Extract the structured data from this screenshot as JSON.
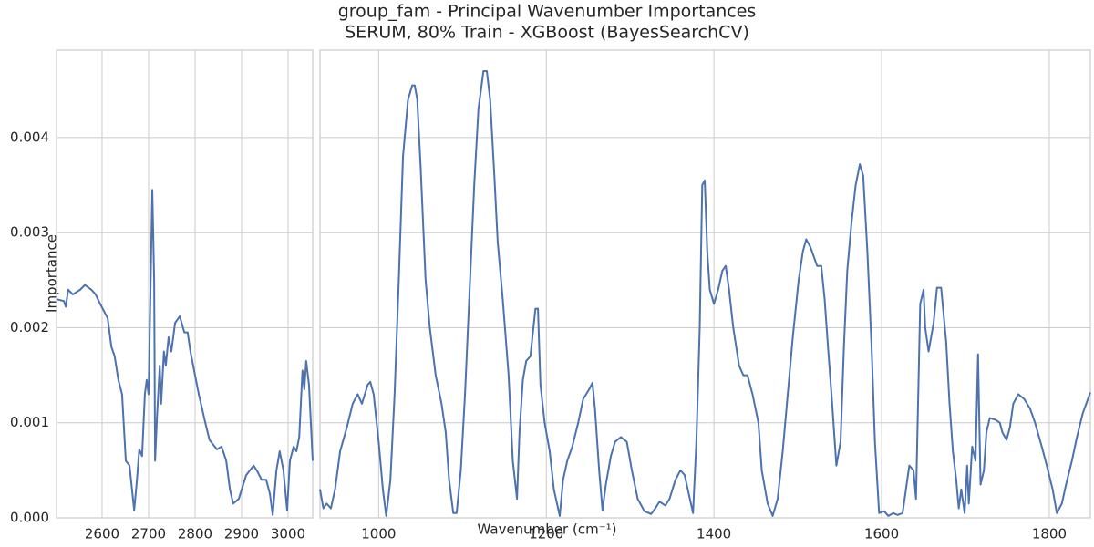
{
  "chart_data": [
    {
      "type": "line",
      "title": "group_fam - Principal Wavenumber Importances",
      "subtitle": "SERUM, 80% Train - XGBoost (BayesSearchCV)",
      "ylabel": "Importance",
      "xlabel": "Wavenumber (cm⁻¹)",
      "color": "#4c72b0",
      "grid": true,
      "xlim": [
        2502,
        3053
      ],
      "xticks": [
        2600,
        2700,
        2800,
        2900,
        3000
      ],
      "ylim": [
        0,
        0.00492
      ],
      "yticks": [
        {
          "value": 0,
          "label": "0.000"
        },
        0.001,
        0.002,
        0.003,
        0.004
      ],
      "x": [
        2502,
        2518,
        2522,
        2527,
        2537,
        2553,
        2563,
        2577,
        2586,
        2596,
        2612,
        2620,
        2627,
        2635,
        2643,
        2651,
        2659,
        2669,
        2675,
        2680,
        2686,
        2692,
        2696,
        2700,
        2708,
        2712,
        2714,
        2718,
        2724,
        2727,
        2733,
        2737,
        2743,
        2749,
        2757,
        2767,
        2777,
        2784,
        2790,
        2798,
        2808,
        2822,
        2831,
        2847,
        2857,
        2867,
        2875,
        2882,
        2894,
        2910,
        2926,
        2935,
        2943,
        2953,
        2961,
        2967,
        2975,
        2982,
        2990,
        2998,
        3004,
        3012,
        3018,
        3024,
        3031,
        3035,
        3039,
        3045,
        3053
      ],
      "values": [
        0.0023,
        0.00228,
        0.00222,
        0.0024,
        0.00235,
        0.0024,
        0.00245,
        0.0024,
        0.00235,
        0.00225,
        0.0021,
        0.0018,
        0.0017,
        0.00145,
        0.0013,
        0.0006,
        0.00055,
        8e-05,
        0.0004,
        0.00072,
        0.00065,
        0.0013,
        0.00145,
        0.0013,
        0.00345,
        0.0025,
        0.0006,
        0.00105,
        0.0016,
        0.0012,
        0.00175,
        0.0016,
        0.0019,
        0.00175,
        0.00205,
        0.00212,
        0.00195,
        0.00195,
        0.00175,
        0.00155,
        0.0013,
        0.001,
        0.00082,
        0.00072,
        0.00075,
        0.0006,
        0.0003,
        0.00015,
        0.0002,
        0.00045,
        0.00055,
        0.00048,
        0.0004,
        0.0004,
        0.00025,
        3e-05,
        0.0005,
        0.0007,
        0.0005,
        8e-05,
        0.0006,
        0.00075,
        0.0007,
        0.00085,
        0.00155,
        0.00135,
        0.00165,
        0.0014,
        0.0006
      ]
    },
    {
      "type": "line",
      "color": "#4c72b0",
      "grid": true,
      "xlim": [
        930,
        1849
      ],
      "xticks": [
        1000,
        1200,
        1400,
        1600,
        1800
      ],
      "ylim": [
        0,
        0.00492
      ],
      "yticks": [
        0,
        0.001,
        0.002,
        0.003,
        0.004
      ],
      "x": [
        930,
        934,
        938,
        943,
        948,
        954,
        962,
        969,
        975,
        980,
        987,
        990,
        994,
        1000,
        1005,
        1009,
        1014,
        1019,
        1024,
        1029,
        1035,
        1040,
        1043,
        1046,
        1050,
        1056,
        1061,
        1068,
        1075,
        1080,
        1084,
        1089,
        1093,
        1098,
        1103,
        1108,
        1114,
        1119,
        1125,
        1129,
        1133,
        1138,
        1142,
        1148,
        1155,
        1160,
        1165,
        1168,
        1172,
        1176,
        1181,
        1187,
        1190,
        1193,
        1198,
        1204,
        1209,
        1216,
        1220,
        1225,
        1231,
        1238,
        1244,
        1251,
        1255,
        1258,
        1263,
        1267,
        1271,
        1277,
        1282,
        1289,
        1296,
        1302,
        1309,
        1317,
        1325,
        1330,
        1335,
        1342,
        1347,
        1354,
        1360,
        1365,
        1370,
        1375,
        1379,
        1383,
        1386,
        1389,
        1392,
        1395,
        1400,
        1405,
        1410,
        1414,
        1418,
        1423,
        1430,
        1435,
        1440,
        1446,
        1453,
        1457,
        1464,
        1470,
        1476,
        1482,
        1488,
        1494,
        1501,
        1506,
        1510,
        1515,
        1519,
        1523,
        1528,
        1532,
        1536,
        1541,
        1546,
        1551,
        1555,
        1559,
        1564,
        1569,
        1574,
        1578,
        1583,
        1588,
        1592,
        1597,
        1603,
        1608,
        1614,
        1619,
        1625,
        1629,
        1633,
        1638,
        1641,
        1646,
        1650,
        1652,
        1656,
        1662,
        1666,
        1671,
        1677,
        1681,
        1685,
        1689,
        1692,
        1695,
        1699,
        1702,
        1704,
        1708,
        1712,
        1715,
        1718,
        1722,
        1725,
        1729,
        1736,
        1741,
        1744,
        1749,
        1753,
        1757,
        1763,
        1770,
        1777,
        1783,
        1791,
        1797,
        1804,
        1809,
        1815,
        1820,
        1827,
        1833,
        1840,
        1849
      ],
      "values": [
        0.0003,
        0.0001,
        0.00015,
        0.0001,
        0.0003,
        0.0007,
        0.00095,
        0.0012,
        0.0013,
        0.0012,
        0.0014,
        0.00143,
        0.0013,
        0.0008,
        0.0003,
        2e-05,
        0.0004,
        0.0013,
        0.0025,
        0.0038,
        0.0044,
        0.00455,
        0.00455,
        0.0044,
        0.0037,
        0.0025,
        0.002,
        0.0015,
        0.0012,
        0.0009,
        0.0004,
        5e-05,
        5e-05,
        0.0005,
        0.0013,
        0.0023,
        0.0035,
        0.0043,
        0.0047,
        0.0047,
        0.0044,
        0.0036,
        0.0029,
        0.0023,
        0.0015,
        0.0006,
        0.0002,
        0.0009,
        0.00145,
        0.00165,
        0.0017,
        0.0022,
        0.0022,
        0.0014,
        0.001,
        0.0007,
        0.0003,
        2e-05,
        0.0004,
        0.0006,
        0.00075,
        0.001,
        0.00125,
        0.00135,
        0.00142,
        0.00115,
        0.0005,
        8e-05,
        0.00035,
        0.00065,
        0.0008,
        0.00085,
        0.0008,
        0.0005,
        0.0002,
        7e-05,
        4e-05,
        0.0001,
        0.00017,
        0.00013,
        0.0002,
        0.0004,
        0.0005,
        0.00045,
        0.00025,
        5e-05,
        0.0008,
        0.002,
        0.0035,
        0.00355,
        0.0028,
        0.0024,
        0.00225,
        0.0024,
        0.0026,
        0.00265,
        0.0024,
        0.002,
        0.0016,
        0.0015,
        0.0015,
        0.0013,
        0.001,
        0.0005,
        0.00015,
        2e-05,
        0.0002,
        0.0007,
        0.0013,
        0.0019,
        0.0025,
        0.0028,
        0.00293,
        0.00285,
        0.00275,
        0.00265,
        0.00265,
        0.0023,
        0.0018,
        0.0012,
        0.00055,
        0.0008,
        0.0018,
        0.0026,
        0.0031,
        0.0035,
        0.00372,
        0.0036,
        0.0028,
        0.0018,
        0.0008,
        5e-05,
        7e-05,
        2e-05,
        5e-05,
        3e-05,
        5e-05,
        0.0003,
        0.00055,
        0.0005,
        0.0002,
        0.00225,
        0.0024,
        0.002,
        0.00175,
        0.00205,
        0.00242,
        0.00242,
        0.00185,
        0.0012,
        0.0007,
        0.0004,
        0.0001,
        0.0003,
        5e-05,
        0.00055,
        0.00015,
        0.00075,
        0.0006,
        0.00172,
        0.00035,
        0.0005,
        0.0009,
        0.00105,
        0.00103,
        0.001,
        0.0009,
        0.00082,
        0.00095,
        0.0012,
        0.0013,
        0.00125,
        0.00115,
        0.001,
        0.00075,
        0.00055,
        0.0003,
        5e-05,
        0.00015,
        0.00035,
        0.0006,
        0.00085,
        0.0011,
        0.00132
      ]
    }
  ]
}
